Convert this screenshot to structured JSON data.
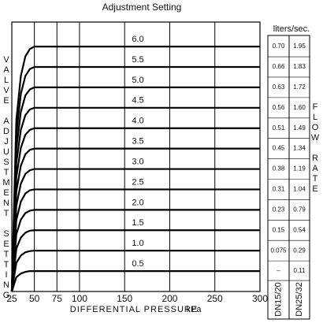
{
  "chart_data": {
    "type": "line",
    "title": "Adjustment Setting",
    "xlabel": "DIFFERENTIAL PRESSURE",
    "x_unit": "kPa",
    "ylabel": "VALVE ADJUSTMENT SETTING",
    "xlim": [
      25,
      300
    ],
    "ylim": [
      0,
      6.6
    ],
    "xticks": [
      25,
      50,
      75,
      100,
      150,
      200,
      250,
      300
    ],
    "grid": true,
    "x": [
      25,
      30,
      35,
      40,
      45,
      50,
      300
    ],
    "series": [
      {
        "name": "6.0",
        "color": "#000000",
        "values": [
          0,
          4.2,
          5.28,
          5.76,
          5.94,
          6.0,
          6.0
        ]
      },
      {
        "name": "5.5",
        "color": "#000000",
        "values": [
          0,
          3.85,
          4.84,
          5.28,
          5.45,
          5.5,
          5.5
        ]
      },
      {
        "name": "5.0",
        "color": "#000000",
        "values": [
          0,
          3.5,
          4.4,
          4.8,
          4.95,
          5,
          5
        ]
      },
      {
        "name": "4.5",
        "color": "#000000",
        "values": [
          0,
          3.15,
          3.96,
          4.32,
          4.46,
          4.5,
          4.5
        ]
      },
      {
        "name": "4.0",
        "color": "#000000",
        "values": [
          0,
          2.8,
          3.52,
          3.84,
          3.96,
          4,
          4
        ]
      },
      {
        "name": "3.5",
        "color": "#000000",
        "values": [
          0,
          2.45,
          3.08,
          3.36,
          3.47,
          3.5,
          3.5
        ]
      },
      {
        "name": "3.0",
        "color": "#000000",
        "values": [
          0,
          2.1,
          2.64,
          2.88,
          2.97,
          3,
          3
        ]
      },
      {
        "name": "2.5",
        "color": "#000000",
        "values": [
          0,
          1.75,
          2.2,
          2.4,
          2.48,
          2.5,
          2.5
        ]
      },
      {
        "name": "2.0",
        "color": "#000000",
        "values": [
          0,
          1.4,
          1.76,
          1.92,
          1.98,
          2,
          2
        ]
      },
      {
        "name": "1.5",
        "color": "#000000",
        "values": [
          0,
          1.05,
          1.32,
          1.44,
          1.49,
          1.5,
          1.5
        ]
      },
      {
        "name": "1.0",
        "color": "#000000",
        "values": [
          0,
          0.7,
          0.88,
          0.96,
          0.99,
          1,
          1
        ]
      },
      {
        "name": "0.5",
        "color": "#000000",
        "values": [
          0,
          0.35,
          0.44,
          0.48,
          0.5,
          0.5,
          0.5
        ]
      }
    ],
    "flow_table": {
      "header": "liters/sec.",
      "side_label": "FLOW RATE",
      "columns": [
        {
          "name": "DN15/20",
          "values": [
            "0.70",
            "0.66",
            "0.63",
            "0.56",
            "0.51",
            "0.45",
            "0.38",
            "0.31",
            "0.23",
            "0.15",
            "0.075",
            "–"
          ]
        },
        {
          "name": "DN25/32",
          "values": [
            "1.95",
            "1.83",
            "1.72",
            "1.60",
            "1.49",
            "1.34",
            "1.19",
            "1.04",
            "0.79",
            "0.54",
            "0.29",
            "0.11"
          ]
        }
      ]
    }
  }
}
